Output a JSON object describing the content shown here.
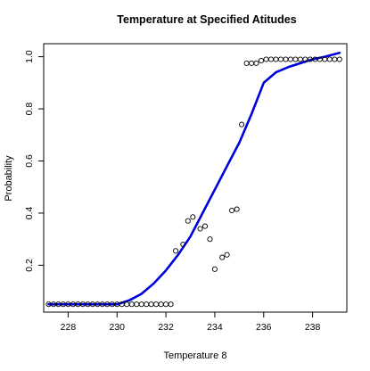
{
  "chart_data": {
    "type": "scatter",
    "title": "Temperature at Specified Atitudes",
    "xlabel": "Temperature 8",
    "ylabel": "Probability",
    "xlim": [
      227.0,
      239.4
    ],
    "ylim": [
      0.02,
      1.05
    ],
    "xticks": [
      228,
      230,
      232,
      234,
      236,
      238
    ],
    "yticks": [
      0.2,
      0.4,
      0.6,
      0.8,
      1.0
    ],
    "xtick_labels": [
      "228",
      "230",
      "232",
      "234",
      "236",
      "238"
    ],
    "ytick_labels": [
      "0.2",
      "0.4",
      "0.6",
      "0.8",
      "1.0"
    ],
    "grid": false,
    "colors": {
      "curve": "#0000dd",
      "points": "#000000",
      "frame": "#000000"
    },
    "series": [
      {
        "type": "scatter",
        "x": [
          227.2,
          227.4,
          227.6,
          227.8,
          228.0,
          228.2,
          228.4,
          228.6,
          228.8,
          229.0,
          229.2,
          229.4,
          229.6,
          229.8,
          230.0,
          230.2,
          230.4,
          230.6,
          230.8,
          231.0,
          231.2,
          231.4,
          231.6,
          231.8,
          232.0,
          232.2,
          232.4,
          232.7,
          232.9,
          233.1,
          233.4,
          233.6,
          233.8,
          234.0,
          234.3,
          234.5,
          234.7,
          234.9,
          235.1,
          235.3,
          235.5,
          235.7,
          235.9,
          236.1,
          236.3,
          236.5,
          236.7,
          236.9,
          237.1,
          237.3,
          237.5,
          237.7,
          237.9,
          238.1,
          238.3,
          238.5,
          238.7,
          238.9,
          239.1
        ],
        "y": [
          0.05,
          0.05,
          0.05,
          0.05,
          0.05,
          0.05,
          0.05,
          0.05,
          0.05,
          0.05,
          0.05,
          0.05,
          0.05,
          0.05,
          0.05,
          0.05,
          0.05,
          0.05,
          0.05,
          0.05,
          0.05,
          0.05,
          0.05,
          0.05,
          0.05,
          0.05,
          0.255,
          0.28,
          0.37,
          0.385,
          0.34,
          0.35,
          0.3,
          0.185,
          0.23,
          0.24,
          0.41,
          0.415,
          0.74,
          0.975,
          0.975,
          0.975,
          0.985,
          0.99,
          0.99,
          0.99,
          0.99,
          0.99,
          0.99,
          0.99,
          0.99,
          0.99,
          0.99,
          0.99,
          0.99,
          0.99,
          0.99,
          0.99,
          0.99
        ]
      },
      {
        "type": "line",
        "x": [
          227.2,
          229.0,
          230.0,
          230.5,
          231.0,
          231.5,
          232.0,
          232.5,
          233.0,
          233.5,
          234.0,
          234.5,
          235.0,
          235.5,
          236.0,
          236.5,
          237.0,
          237.5,
          238.0,
          238.5,
          239.1
        ],
        "y": [
          0.05,
          0.05,
          0.05,
          0.065,
          0.09,
          0.13,
          0.18,
          0.24,
          0.31,
          0.4,
          0.49,
          0.58,
          0.67,
          0.78,
          0.9,
          0.94,
          0.96,
          0.975,
          0.99,
          1.0,
          1.015
        ]
      }
    ]
  }
}
